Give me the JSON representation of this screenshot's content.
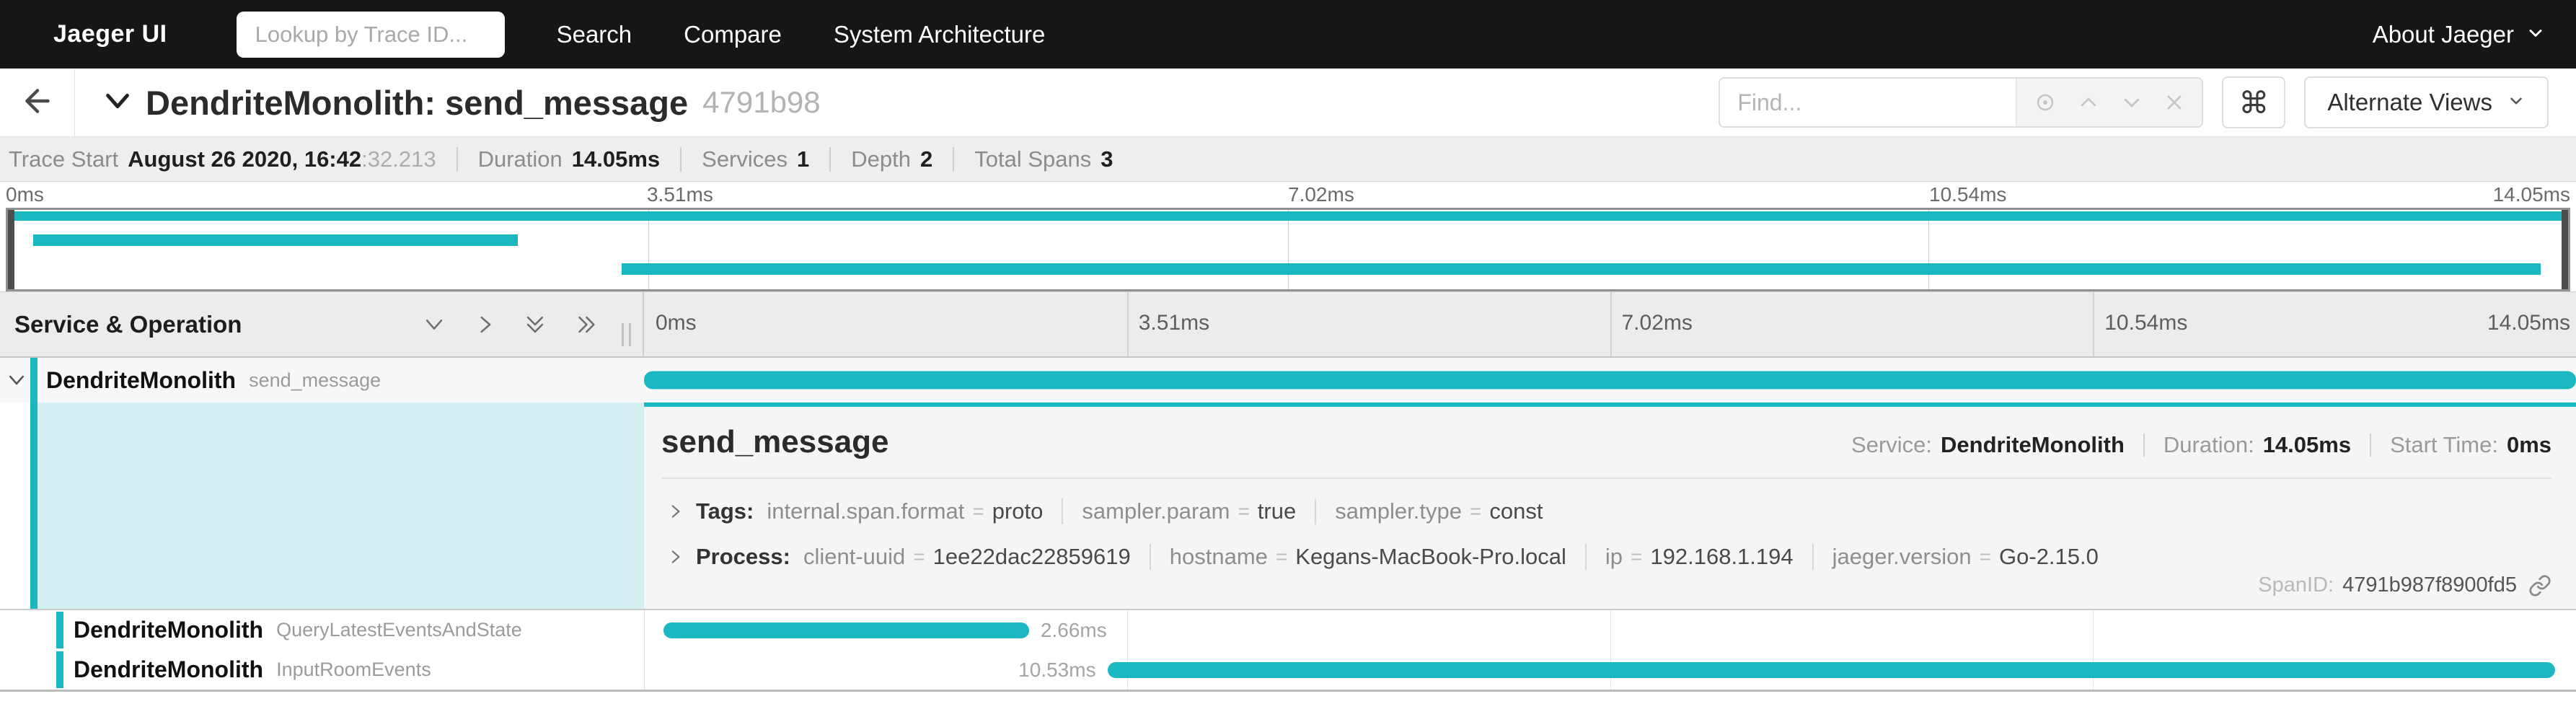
{
  "navbar": {
    "brand": "Jaeger UI",
    "trace_lookup_placeholder": "Lookup by Trace ID...",
    "items": [
      {
        "label": "Search"
      },
      {
        "label": "Compare"
      },
      {
        "label": "System Architecture"
      }
    ],
    "about_label": "About Jaeger"
  },
  "trace_header": {
    "title": "DendriteMonolith: send_message",
    "trace_id_short": "4791b98",
    "find_placeholder": "Find...",
    "keyboard_shortcuts_glyph": "⌘",
    "alternate_views_label": "Alternate Views"
  },
  "trace_summary": {
    "trace_start_label": "Trace Start",
    "trace_start_value": "August 26 2020, 16:42",
    "trace_start_fraction": ":32.213",
    "duration_label": "Duration",
    "duration_value": "14.05ms",
    "services_label": "Services",
    "services_value": "1",
    "depth_label": "Depth",
    "depth_value": "2",
    "total_spans_label": "Total Spans",
    "total_spans_value": "3"
  },
  "timeline": {
    "header_label": "Service & Operation",
    "total_ms": 14.05,
    "ticks": [
      "0ms",
      "3.51ms",
      "7.02ms",
      "10.54ms",
      "14.05ms"
    ]
  },
  "spans": [
    {
      "service": "DendriteMonolith",
      "operation": "send_message",
      "start_ms": 0,
      "duration_ms": 14.05,
      "duration_label": ""
    },
    {
      "service": "DendriteMonolith",
      "operation": "QueryLatestEventsAndState",
      "start_ms": 0.14,
      "duration_ms": 2.66,
      "duration_label": "2.66ms"
    },
    {
      "service": "DendriteMonolith",
      "operation": "InputRoomEvents",
      "start_ms": 3.37,
      "duration_ms": 10.53,
      "duration_label": "10.53ms"
    }
  ],
  "span_detail": {
    "operation": "send_message",
    "service_label": "Service:",
    "service_value": "DendriteMonolith",
    "duration_label": "Duration:",
    "duration_value": "14.05ms",
    "start_time_label": "Start Time:",
    "start_time_value": "0ms",
    "tags_label": "Tags:",
    "equals_sign": "=",
    "tags": [
      {
        "key": "internal.span.format",
        "value": "proto"
      },
      {
        "key": "sampler.param",
        "value": "true"
      },
      {
        "key": "sampler.type",
        "value": "const"
      }
    ],
    "process_label": "Process:",
    "process": [
      {
        "key": "client-uuid",
        "value": "1ee22dac22859619"
      },
      {
        "key": "hostname",
        "value": "Kegans-MacBook-Pro.local"
      },
      {
        "key": "ip",
        "value": "192.168.1.194"
      },
      {
        "key": "jaeger.version",
        "value": "Go-2.15.0"
      }
    ],
    "span_id_label": "SpanID:",
    "span_id_value": "4791b987f8900fd5"
  },
  "colors": {
    "accent": "#1cb8c2",
    "navbar_bg": "#161616",
    "detail_highlight": "#d4f0f2",
    "detail_bg": "#f5f5f5"
  }
}
